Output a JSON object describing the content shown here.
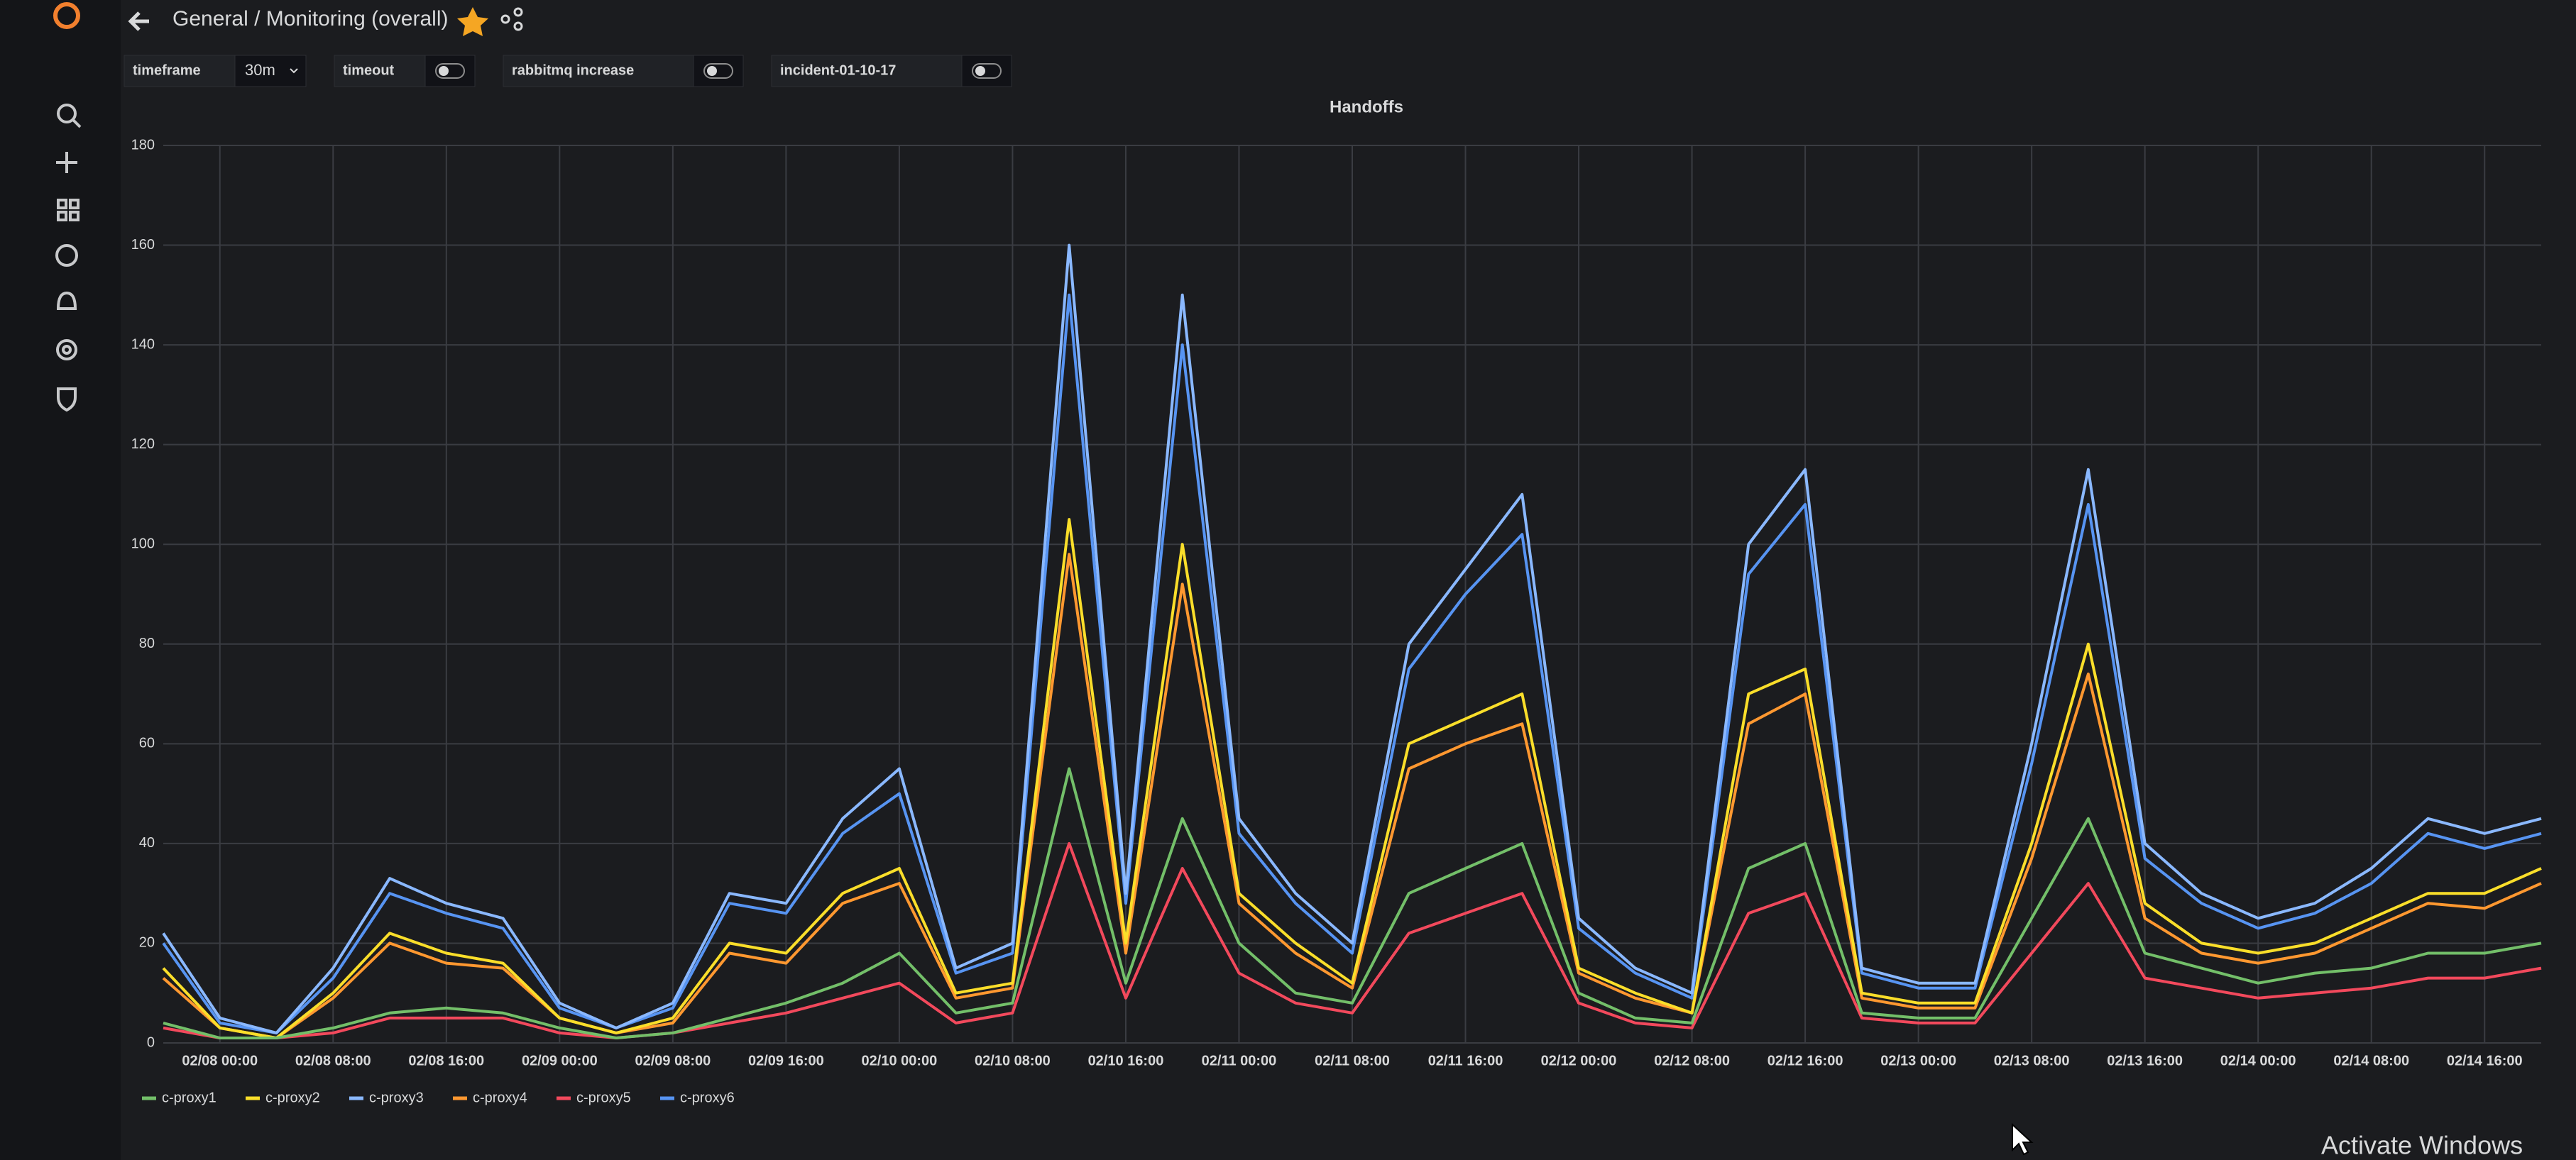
{
  "header": {
    "breadcrumb": "General / Monitoring (overall)"
  },
  "variables": [
    {
      "label": "timeframe",
      "value": "30m"
    },
    {
      "label": "timeout"
    },
    {
      "label": "rabbitmq increase"
    },
    {
      "label": "incident-01-10-17"
    }
  ],
  "chart_data": {
    "type": "line",
    "title": "Handoffs",
    "x": [
      "02/07 20:00",
      "02/08 00:00",
      "02/08 04:00",
      "02/08 08:00",
      "02/08 12:00",
      "02/08 16:00",
      "02/08 20:00",
      "02/09 00:00",
      "02/09 04:00",
      "02/09 08:00",
      "02/09 12:00",
      "02/09 16:00",
      "02/09 20:00",
      "02/10 00:00",
      "02/10 04:00",
      "02/10 08:00",
      "02/10 12:00",
      "02/10 16:00",
      "02/10 20:00",
      "02/11 00:00",
      "02/11 04:00",
      "02/11 08:00",
      "02/11 12:00",
      "02/11 16:00",
      "02/11 20:00",
      "02/12 00:00",
      "02/12 04:00",
      "02/12 08:00",
      "02/12 12:00",
      "02/12 16:00",
      "02/12 20:00",
      "02/13 00:00",
      "02/13 04:00",
      "02/13 08:00",
      "02/13 12:00",
      "02/13 16:00",
      "02/13 20:00",
      "02/14 00:00",
      "02/14 04:00",
      "02/14 08:00",
      "02/14 12:00",
      "02/14 16:00",
      "02/14 20:00"
    ],
    "xticks": [
      "02/08 00:00",
      "02/08 08:00",
      "02/08 16:00",
      "02/09 00:00",
      "02/09 08:00",
      "02/09 16:00",
      "02/10 00:00",
      "02/10 08:00",
      "02/10 16:00",
      "02/11 00:00",
      "02/11 08:00",
      "02/11 16:00",
      "02/12 00:00",
      "02/12 08:00",
      "02/12 16:00",
      "02/13 00:00",
      "02/13 08:00",
      "02/13 16:00",
      "02/14 00:00",
      "02/14 08:00",
      "02/14 16:00"
    ],
    "ylim": [
      0,
      180
    ],
    "yticks": [
      0,
      20,
      40,
      60,
      80,
      100,
      120,
      140,
      160,
      180
    ],
    "grid": true,
    "series": [
      {
        "name": "c-proxy1",
        "color": "#73bf69",
        "values": [
          4,
          1,
          1,
          3,
          6,
          7,
          6,
          3,
          1,
          2,
          5,
          8,
          12,
          18,
          6,
          8,
          55,
          12,
          45,
          20,
          10,
          8,
          30,
          35,
          40,
          10,
          5,
          4,
          35,
          40,
          6,
          5,
          5,
          25,
          45,
          18,
          15,
          12,
          14,
          15,
          18,
          18,
          20
        ]
      },
      {
        "name": "c-proxy2",
        "color": "#fade2a",
        "values": [
          15,
          3,
          1,
          10,
          22,
          18,
          16,
          5,
          2,
          5,
          20,
          18,
          30,
          35,
          10,
          12,
          105,
          20,
          100,
          30,
          20,
          12,
          60,
          65,
          70,
          15,
          10,
          6,
          70,
          75,
          10,
          8,
          8,
          40,
          80,
          28,
          20,
          18,
          20,
          25,
          30,
          30,
          35
        ]
      },
      {
        "name": "c-proxy3",
        "color": "#8ab8ff",
        "values": [
          22,
          5,
          2,
          15,
          33,
          28,
          25,
          8,
          3,
          8,
          30,
          28,
          45,
          55,
          15,
          20,
          160,
          30,
          150,
          45,
          30,
          20,
          80,
          95,
          110,
          25,
          15,
          10,
          100,
          115,
          15,
          12,
          12,
          60,
          115,
          40,
          30,
          25,
          28,
          35,
          45,
          42,
          45
        ]
      },
      {
        "name": "c-proxy4",
        "color": "#ff9830",
        "values": [
          13,
          3,
          1,
          9,
          20,
          16,
          15,
          5,
          2,
          4,
          18,
          16,
          28,
          32,
          9,
          11,
          98,
          18,
          92,
          28,
          18,
          11,
          55,
          60,
          64,
          14,
          9,
          6,
          64,
          70,
          9,
          7,
          7,
          37,
          74,
          25,
          18,
          16,
          18,
          23,
          28,
          27,
          32
        ]
      },
      {
        "name": "c-proxy5",
        "color": "#f2495c",
        "values": [
          3,
          1,
          1,
          2,
          5,
          5,
          5,
          2,
          1,
          2,
          4,
          6,
          9,
          12,
          4,
          6,
          40,
          9,
          35,
          14,
          8,
          6,
          22,
          26,
          30,
          8,
          4,
          3,
          26,
          30,
          5,
          4,
          4,
          18,
          32,
          13,
          11,
          9,
          10,
          11,
          13,
          13,
          15
        ]
      },
      {
        "name": "c-proxy6",
        "color": "#5794f2",
        "values": [
          20,
          4,
          2,
          13,
          30,
          26,
          23,
          7,
          3,
          7,
          28,
          26,
          42,
          50,
          14,
          18,
          150,
          28,
          140,
          42,
          28,
          18,
          75,
          90,
          102,
          23,
          14,
          9,
          94,
          108,
          14,
          11,
          11,
          56,
          108,
          37,
          28,
          23,
          26,
          32,
          42,
          39,
          42
        ]
      }
    ],
    "legend": "bottom-left"
  },
  "watermark": "Activate Windows"
}
